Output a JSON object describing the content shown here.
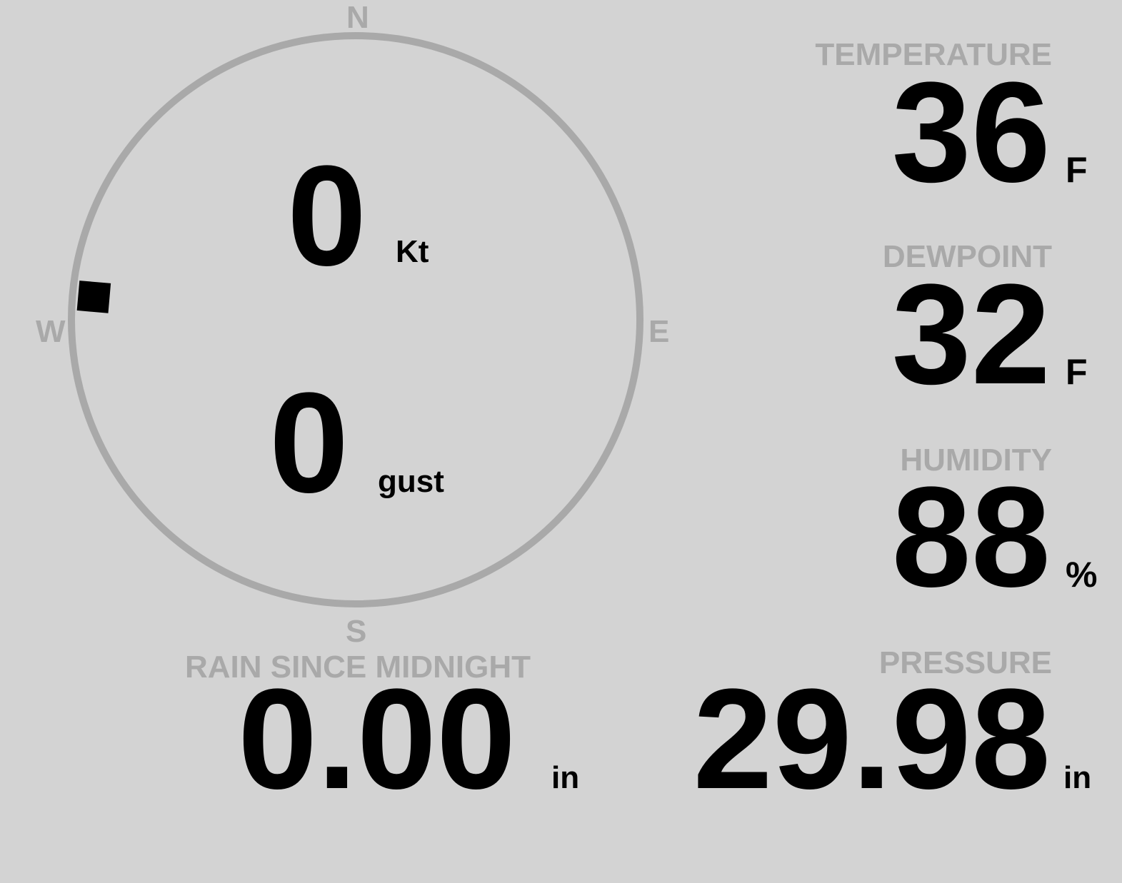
{
  "wind": {
    "compass": {
      "north": "N",
      "east": "E",
      "south": "S",
      "west": "W"
    },
    "direction_degrees": 275,
    "speed": "0",
    "speed_unit": "Kt",
    "gust": "0",
    "gust_unit": "gust",
    "colors": {
      "ring": "#a9a9a9",
      "marker": "#000000"
    }
  },
  "temperature": {
    "label": "TEMPERATURE",
    "value": "36",
    "unit": "F"
  },
  "dewpoint": {
    "label": "DEWPOINT",
    "value": "32",
    "unit": "F"
  },
  "humidity": {
    "label": "HUMIDITY",
    "value": "88",
    "unit": "%"
  },
  "rain": {
    "label": "RAIN SINCE MIDNIGHT",
    "value": "0.00",
    "unit": "in"
  },
  "pressure": {
    "label": "PRESSURE",
    "value": "29.98",
    "unit": "in"
  },
  "colors": {
    "background": "#d3d3d3",
    "label": "#a9a9a9",
    "value": "#000000"
  }
}
